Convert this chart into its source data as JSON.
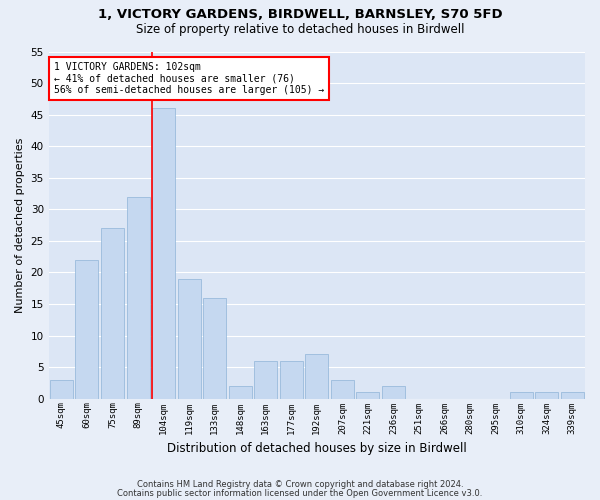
{
  "title_line1": "1, VICTORY GARDENS, BIRDWELL, BARNSLEY, S70 5FD",
  "title_line2": "Size of property relative to detached houses in Birdwell",
  "xlabel": "Distribution of detached houses by size in Birdwell",
  "ylabel": "Number of detached properties",
  "bar_color": "#c5d8f0",
  "bar_edge_color": "#8fb4d8",
  "bg_color": "#dce6f5",
  "grid_color": "#ffffff",
  "fig_bg_color": "#e8eef8",
  "categories": [
    "45sqm",
    "60sqm",
    "75sqm",
    "89sqm",
    "104sqm",
    "119sqm",
    "133sqm",
    "148sqm",
    "163sqm",
    "177sqm",
    "192sqm",
    "207sqm",
    "221sqm",
    "236sqm",
    "251sqm",
    "266sqm",
    "280sqm",
    "295sqm",
    "310sqm",
    "324sqm",
    "339sqm"
  ],
  "values": [
    3,
    22,
    27,
    32,
    46,
    19,
    16,
    2,
    6,
    6,
    7,
    3,
    1,
    2,
    0,
    0,
    0,
    0,
    1,
    1,
    1
  ],
  "ylim": [
    0,
    55
  ],
  "yticks": [
    0,
    5,
    10,
    15,
    20,
    25,
    30,
    35,
    40,
    45,
    50,
    55
  ],
  "red_line_bar_index": 4,
  "annotation_text_line1": "1 VICTORY GARDENS: 102sqm",
  "annotation_text_line2": "← 41% of detached houses are smaller (76)",
  "annotation_text_line3": "56% of semi-detached houses are larger (105) →",
  "footer_line1": "Contains HM Land Registry data © Crown copyright and database right 2024.",
  "footer_line2": "Contains public sector information licensed under the Open Government Licence v3.0."
}
